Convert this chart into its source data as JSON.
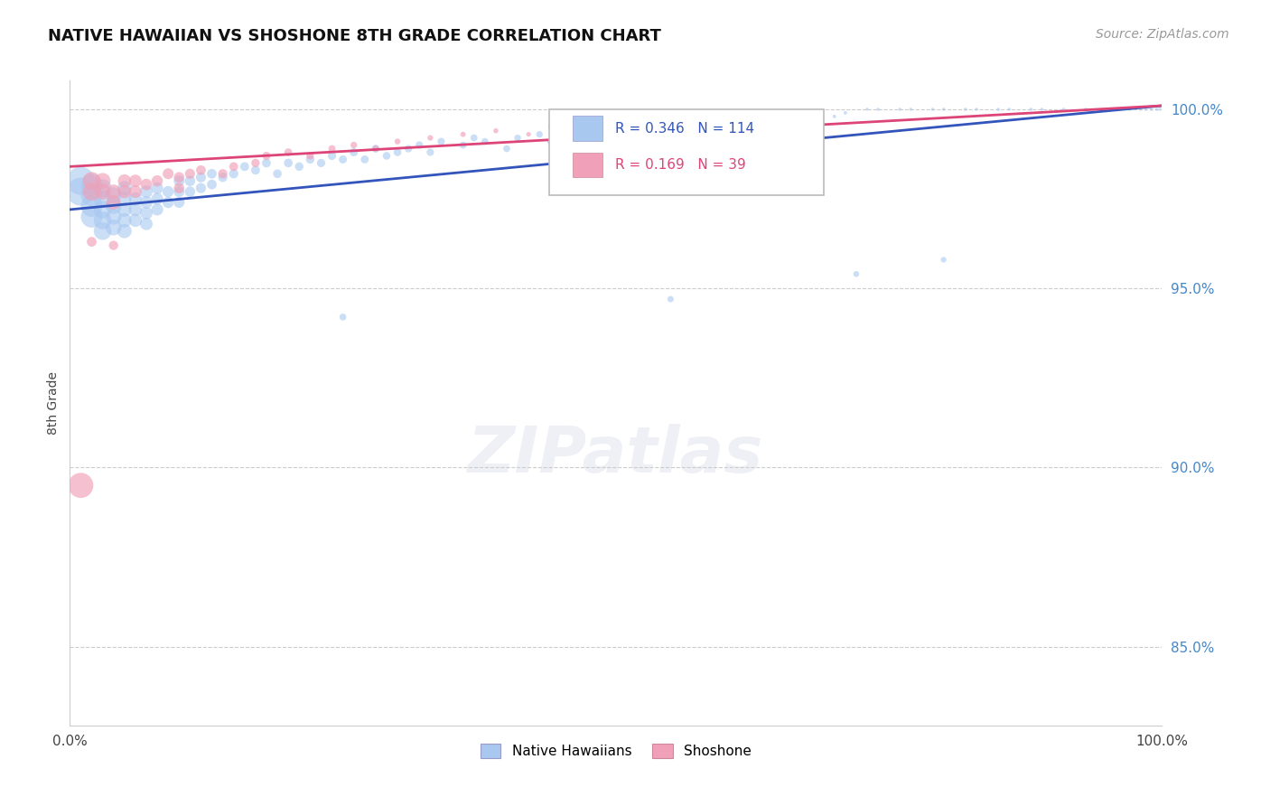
{
  "title": "NATIVE HAWAIIAN VS SHOSHONE 8TH GRADE CORRELATION CHART",
  "source": "Source: ZipAtlas.com",
  "ylabel": "8th Grade",
  "ytick_values": [
    0.85,
    0.9,
    0.95,
    1.0
  ],
  "xlim": [
    0.0,
    1.0
  ],
  "ylim": [
    0.828,
    1.008
  ],
  "R_blue": 0.346,
  "N_blue": 114,
  "R_pink": 0.169,
  "N_pink": 39,
  "blue_color": "#a8c8f0",
  "blue_line_color": "#3355bb",
  "pink_color": "#f0a0b8",
  "pink_line_color": "#dd4477",
  "legend_blue_label": "Native Hawaiians",
  "legend_pink_label": "Shoshone",
  "blue_trend_x0": 0.0,
  "blue_trend_y0": 0.972,
  "blue_trend_x1": 1.0,
  "blue_trend_y1": 1.001,
  "pink_trend_x0": 0.0,
  "pink_trend_y0": 0.984,
  "pink_trend_x1": 1.0,
  "pink_trend_y1": 1.001,
  "blue_scatter_x": [
    0.01,
    0.01,
    0.02,
    0.02,
    0.02,
    0.02,
    0.03,
    0.03,
    0.03,
    0.03,
    0.03,
    0.04,
    0.04,
    0.04,
    0.04,
    0.05,
    0.05,
    0.05,
    0.05,
    0.05,
    0.06,
    0.06,
    0.06,
    0.07,
    0.07,
    0.07,
    0.07,
    0.08,
    0.08,
    0.08,
    0.09,
    0.09,
    0.1,
    0.1,
    0.1,
    0.11,
    0.11,
    0.12,
    0.12,
    0.13,
    0.13,
    0.14,
    0.15,
    0.16,
    0.17,
    0.18,
    0.19,
    0.2,
    0.21,
    0.22,
    0.23,
    0.24,
    0.25,
    0.26,
    0.27,
    0.28,
    0.29,
    0.3,
    0.31,
    0.32,
    0.33,
    0.34,
    0.36,
    0.37,
    0.38,
    0.4,
    0.41,
    0.43,
    0.44,
    0.45,
    0.46,
    0.48,
    0.49,
    0.5,
    0.51,
    0.53,
    0.54,
    0.56,
    0.57,
    0.59,
    0.6,
    0.62,
    0.63,
    0.65,
    0.66,
    0.68,
    0.7,
    0.71,
    0.73,
    0.74,
    0.76,
    0.77,
    0.79,
    0.8,
    0.82,
    0.83,
    0.85,
    0.86,
    0.88,
    0.89,
    0.91,
    0.93,
    0.95,
    0.96,
    0.97,
    0.98,
    0.985,
    0.99,
    0.995,
    0.998,
    0.25,
    0.55,
    0.72,
    0.8
  ],
  "blue_scatter_y": [
    0.98,
    0.977,
    0.979,
    0.976,
    0.973,
    0.97,
    0.978,
    0.975,
    0.972,
    0.969,
    0.966,
    0.976,
    0.973,
    0.97,
    0.967,
    0.978,
    0.975,
    0.972,
    0.969,
    0.966,
    0.975,
    0.972,
    0.969,
    0.977,
    0.974,
    0.971,
    0.968,
    0.978,
    0.975,
    0.972,
    0.977,
    0.974,
    0.98,
    0.977,
    0.974,
    0.98,
    0.977,
    0.981,
    0.978,
    0.982,
    0.979,
    0.981,
    0.982,
    0.984,
    0.983,
    0.985,
    0.982,
    0.985,
    0.984,
    0.986,
    0.985,
    0.987,
    0.986,
    0.988,
    0.986,
    0.989,
    0.987,
    0.988,
    0.989,
    0.99,
    0.988,
    0.991,
    0.99,
    0.992,
    0.991,
    0.989,
    0.992,
    0.993,
    0.991,
    0.994,
    0.992,
    0.995,
    0.993,
    0.996,
    0.994,
    0.995,
    0.997,
    0.996,
    0.997,
    0.997,
    0.998,
    0.998,
    0.997,
    0.998,
    0.999,
    0.999,
    0.998,
    0.999,
    1.0,
    1.0,
    1.0,
    1.0,
    1.0,
    1.0,
    1.0,
    1.0,
    1.0,
    1.0,
    1.0,
    1.0,
    1.0,
    1.0,
    1.0,
    1.0,
    1.0,
    1.0,
    1.0,
    1.0,
    1.0,
    1.0,
    0.942,
    0.947,
    0.954,
    0.958
  ],
  "blue_scatter_size": [
    500,
    500,
    300,
    300,
    300,
    300,
    200,
    200,
    200,
    200,
    200,
    160,
    160,
    160,
    160,
    130,
    130,
    130,
    130,
    130,
    110,
    110,
    110,
    100,
    100,
    100,
    100,
    90,
    90,
    90,
    80,
    80,
    75,
    75,
    75,
    70,
    70,
    65,
    65,
    60,
    60,
    55,
    55,
    50,
    50,
    50,
    48,
    48,
    46,
    46,
    44,
    44,
    42,
    42,
    40,
    40,
    38,
    38,
    36,
    36,
    34,
    34,
    32,
    32,
    30,
    30,
    28,
    28,
    26,
    26,
    24,
    24,
    22,
    22,
    20,
    20,
    18,
    18,
    16,
    16,
    14,
    14,
    12,
    12,
    10,
    10,
    8,
    8,
    6,
    6,
    6,
    6,
    6,
    6,
    6,
    6,
    6,
    6,
    6,
    6,
    6,
    6,
    6,
    6,
    6,
    6,
    6,
    6,
    6,
    6,
    30,
    25,
    22,
    20
  ],
  "pink_scatter_x": [
    0.01,
    0.02,
    0.02,
    0.03,
    0.03,
    0.04,
    0.04,
    0.05,
    0.05,
    0.06,
    0.06,
    0.07,
    0.08,
    0.09,
    0.1,
    0.1,
    0.11,
    0.12,
    0.14,
    0.15,
    0.17,
    0.18,
    0.2,
    0.22,
    0.24,
    0.26,
    0.28,
    0.3,
    0.33,
    0.36,
    0.39,
    0.42,
    0.44,
    0.46,
    0.48,
    0.52,
    0.55,
    0.02,
    0.04
  ],
  "pink_scatter_y": [
    0.895,
    0.98,
    0.977,
    0.98,
    0.977,
    0.977,
    0.974,
    0.98,
    0.977,
    0.98,
    0.977,
    0.979,
    0.98,
    0.982,
    0.981,
    0.978,
    0.982,
    0.983,
    0.982,
    0.984,
    0.985,
    0.987,
    0.988,
    0.987,
    0.989,
    0.99,
    0.989,
    0.991,
    0.992,
    0.993,
    0.994,
    0.993,
    0.995,
    0.996,
    0.994,
    0.995,
    0.997,
    0.963,
    0.962
  ],
  "pink_scatter_size": [
    400,
    200,
    200,
    160,
    160,
    130,
    130,
    110,
    110,
    100,
    100,
    85,
    80,
    75,
    70,
    70,
    65,
    60,
    55,
    50,
    45,
    42,
    38,
    35,
    32,
    28,
    25,
    22,
    20,
    18,
    16,
    14,
    12,
    10,
    8,
    6,
    6,
    60,
    55
  ]
}
